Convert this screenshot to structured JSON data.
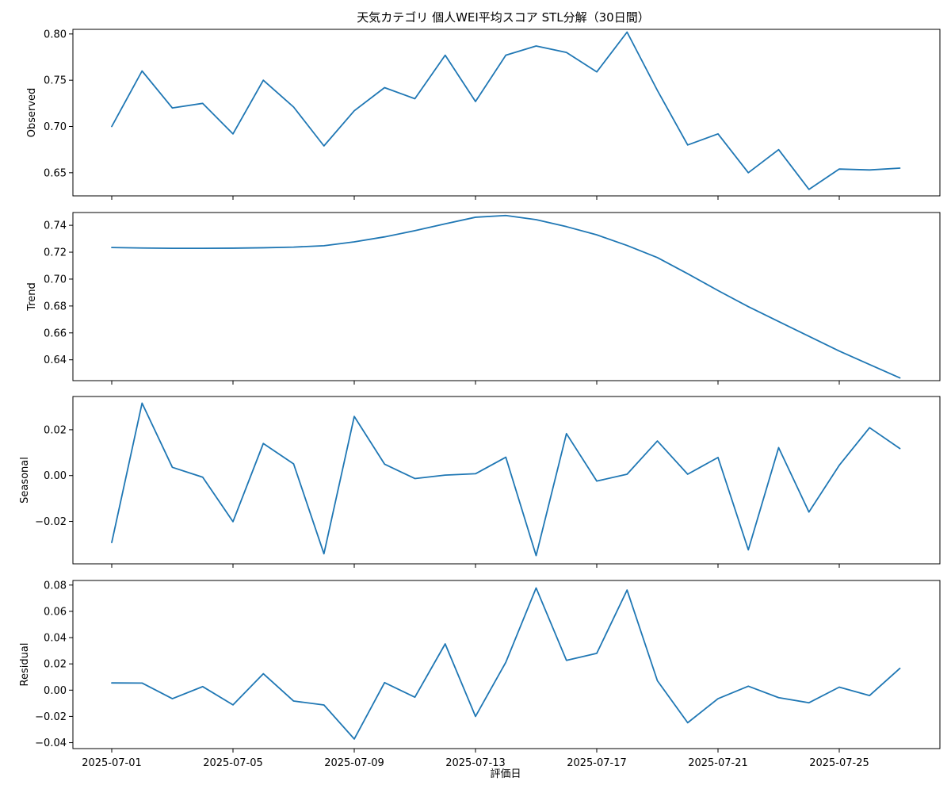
{
  "chart_data": {
    "type": "line",
    "title": "天気カテゴリ 個人WEI平均スコア STL分解（30日間）",
    "xlabel": "評価日",
    "x": [
      "2025-07-01",
      "2025-07-02",
      "2025-07-03",
      "2025-07-04",
      "2025-07-05",
      "2025-07-06",
      "2025-07-07",
      "2025-07-08",
      "2025-07-09",
      "2025-07-10",
      "2025-07-11",
      "2025-07-12",
      "2025-07-13",
      "2025-07-14",
      "2025-07-15",
      "2025-07-16",
      "2025-07-17",
      "2025-07-18",
      "2025-07-19",
      "2025-07-20",
      "2025-07-21",
      "2025-07-22",
      "2025-07-23",
      "2025-07-24",
      "2025-07-25",
      "2025-07-26",
      "2025-07-27"
    ],
    "x_ticks": [
      "2025-07-01",
      "2025-07-05",
      "2025-07-09",
      "2025-07-13",
      "2025-07-17",
      "2025-07-21",
      "2025-07-25"
    ],
    "line_color": "#1f77b4",
    "panels": [
      {
        "ylabel": "Observed",
        "ylim": [
          0.625,
          0.805
        ],
        "yticks": [
          "0.65",
          "0.70",
          "0.75",
          "0.80"
        ],
        "values": [
          0.7,
          0.76,
          0.72,
          0.725,
          0.692,
          0.75,
          0.721,
          0.679,
          0.717,
          0.742,
          0.73,
          0.777,
          0.727,
          0.777,
          0.787,
          0.78,
          0.759,
          0.802,
          0.739,
          0.68,
          0.692,
          0.65,
          0.675,
          0.632,
          0.654,
          0.653,
          0.655
        ]
      },
      {
        "ylabel": "Trend",
        "ylim": [
          0.6245,
          0.7495
        ],
        "yticks": [
          "0.64",
          "0.66",
          "0.68",
          "0.70",
          "0.72",
          "0.74"
        ],
        "values": [
          0.7235,
          0.7231,
          0.7229,
          0.7229,
          0.723,
          0.7233,
          0.7238,
          0.7248,
          0.7277,
          0.7314,
          0.736,
          0.7411,
          0.746,
          0.7473,
          0.7442,
          0.739,
          0.7329,
          0.725,
          0.716,
          0.704,
          0.6915,
          0.6795,
          0.6685,
          0.6575,
          0.6465,
          0.6365,
          0.6265
        ]
      },
      {
        "ylabel": "Seasonal",
        "ylim": [
          -0.0385,
          0.0345
        ],
        "yticks": [
          "−0.02",
          "0.00",
          "0.02"
        ],
        "values": [
          -0.0292,
          0.0316,
          0.0036,
          -0.0007,
          -0.0201,
          0.014,
          0.0051,
          -0.0341,
          0.0258,
          0.005,
          -0.0013,
          0.0002,
          0.0008,
          0.008,
          -0.0349,
          0.0183,
          -0.0024,
          0.0006,
          0.0151,
          0.0006,
          0.0079,
          -0.0324,
          0.0122,
          -0.0159,
          0.0045,
          0.0209,
          0.0118
        ]
      },
      {
        "ylabel": "Residual",
        "ylim": [
          -0.0445,
          0.0835
        ],
        "yticks": [
          "−0.04",
          "−0.02",
          "0.00",
          "0.02",
          "0.04",
          "0.06",
          "0.08"
        ],
        "values": [
          0.0055,
          0.0054,
          -0.0065,
          0.0027,
          -0.0112,
          0.0125,
          -0.0083,
          -0.0113,
          -0.0372,
          0.0057,
          -0.0054,
          0.0352,
          -0.02,
          0.0212,
          0.0778,
          0.0227,
          0.028,
          0.0762,
          0.0072,
          -0.0248,
          -0.0065,
          0.003,
          -0.0057,
          -0.0096,
          0.0023,
          -0.0041,
          0.0166
        ]
      }
    ]
  }
}
